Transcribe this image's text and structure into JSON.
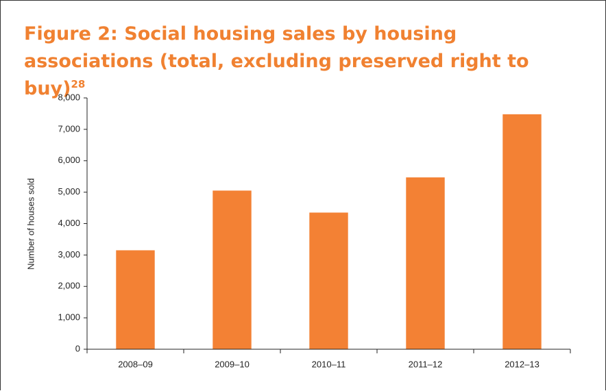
{
  "chart_data": {
    "type": "bar",
    "title": "Figure 2: Social housing sales by housing associations (total, excluding preserved right to buy)",
    "title_superscript": "28",
    "y_label": "Number of houses sold",
    "categories": [
      "2008–09",
      "2009–10",
      "2010–11",
      "2011–12",
      "2012–13"
    ],
    "values": [
      3150,
      5050,
      4350,
      5470,
      7480
    ],
    "color": "#f38134",
    "ylim": [
      0,
      8000
    ],
    "yticks": [
      0,
      {
        "value": 1000,
        "label": "1,000"
      },
      {
        "value": 2000,
        "label": "2,000"
      },
      {
        "value": 3000,
        "label": "3,000"
      },
      {
        "value": 4000,
        "label": "4,000"
      },
      {
        "value": 5000,
        "label": "5,000"
      },
      {
        "value": 6000,
        "label": "6,000"
      },
      {
        "value": 7000,
        "label": "7,000"
      },
      {
        "value": 8000,
        "label": "8,000"
      }
    ],
    "grid": false
  }
}
